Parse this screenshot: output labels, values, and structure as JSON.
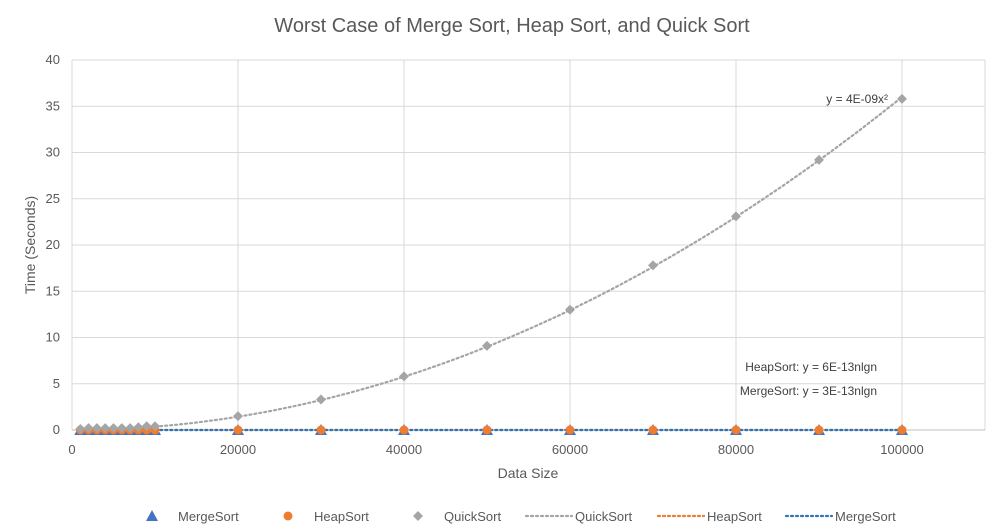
{
  "chart_data": {
    "type": "scatter",
    "title": "Worst Case of Merge Sort, Heap Sort, and Quick Sort",
    "xlabel": "Data Size",
    "ylabel": "Time (Seconds)",
    "xlim": [
      0,
      110000
    ],
    "ylim": [
      0,
      40
    ],
    "x_ticks": [
      0,
      20000,
      40000,
      60000,
      80000,
      100000
    ],
    "y_ticks": [
      0,
      5,
      10,
      15,
      20,
      25,
      30,
      35,
      40
    ],
    "grid": true,
    "legend_position": "bottom",
    "x": [
      1000,
      2000,
      3000,
      4000,
      5000,
      6000,
      7000,
      8000,
      9000,
      10000,
      20000,
      30000,
      40000,
      50000,
      60000,
      70000,
      80000,
      90000,
      100000
    ],
    "series": [
      {
        "name": "MergeSort",
        "marker": "triangle",
        "color": "#4472C4",
        "values": [
          0.0,
          0.0,
          0.0,
          0.0,
          0.0,
          0.0,
          0.0,
          0.0,
          0.0,
          0.0,
          0.0,
          0.0,
          0.0,
          0.0,
          0.0,
          0.0,
          0.0,
          0.0,
          0.0
        ]
      },
      {
        "name": "HeapSort",
        "marker": "circle",
        "color": "#ED7D31",
        "values": [
          0.0,
          0.0,
          0.0,
          0.0,
          0.0,
          0.0,
          0.0,
          0.0,
          0.0,
          0.0,
          0.0,
          0.0,
          0.0,
          0.0,
          0.0,
          0.0,
          0.0,
          0.0,
          0.0
        ]
      },
      {
        "name": "QuickSort",
        "marker": "diamond",
        "color": "#A5A5A5",
        "values": [
          0.1,
          0.2,
          0.2,
          0.2,
          0.2,
          0.2,
          0.2,
          0.3,
          0.4,
          0.4,
          1.5,
          3.3,
          5.8,
          9.1,
          13.0,
          17.8,
          23.1,
          29.2,
          35.8
        ]
      }
    ],
    "trendlines": [
      {
        "name": "QuickSort",
        "color": "#A5A5A5",
        "style": "dotted",
        "formula": "y = 4E-09x²",
        "fn": "quad",
        "coef": 3.6e-09
      },
      {
        "name": "HeapSort",
        "color": "#ED7D31",
        "style": "dotted",
        "formula": "HeapSort: y = 6E-13nlgn",
        "fn": "nlogn",
        "coef": 6e-13
      },
      {
        "name": "MergeSort",
        "color": "#2E75B6",
        "style": "dotted",
        "formula": "MergeSort: y = 3E-13nlgn",
        "fn": "nlogn",
        "coef": 3e-13
      }
    ],
    "legend": [
      {
        "label": "MergeSort",
        "kind": "marker",
        "marker": "triangle",
        "color": "#4472C4"
      },
      {
        "label": "HeapSort",
        "kind": "marker",
        "marker": "circle",
        "color": "#ED7D31"
      },
      {
        "label": "QuickSort",
        "kind": "marker",
        "marker": "diamond",
        "color": "#A5A5A5"
      },
      {
        "label": "QuickSort",
        "kind": "line",
        "color": "#A5A5A5"
      },
      {
        "label": "HeapSort",
        "kind": "line",
        "color": "#ED7D31"
      },
      {
        "label": "MergeSort",
        "kind": "line",
        "color": "#2E75B6"
      }
    ]
  }
}
